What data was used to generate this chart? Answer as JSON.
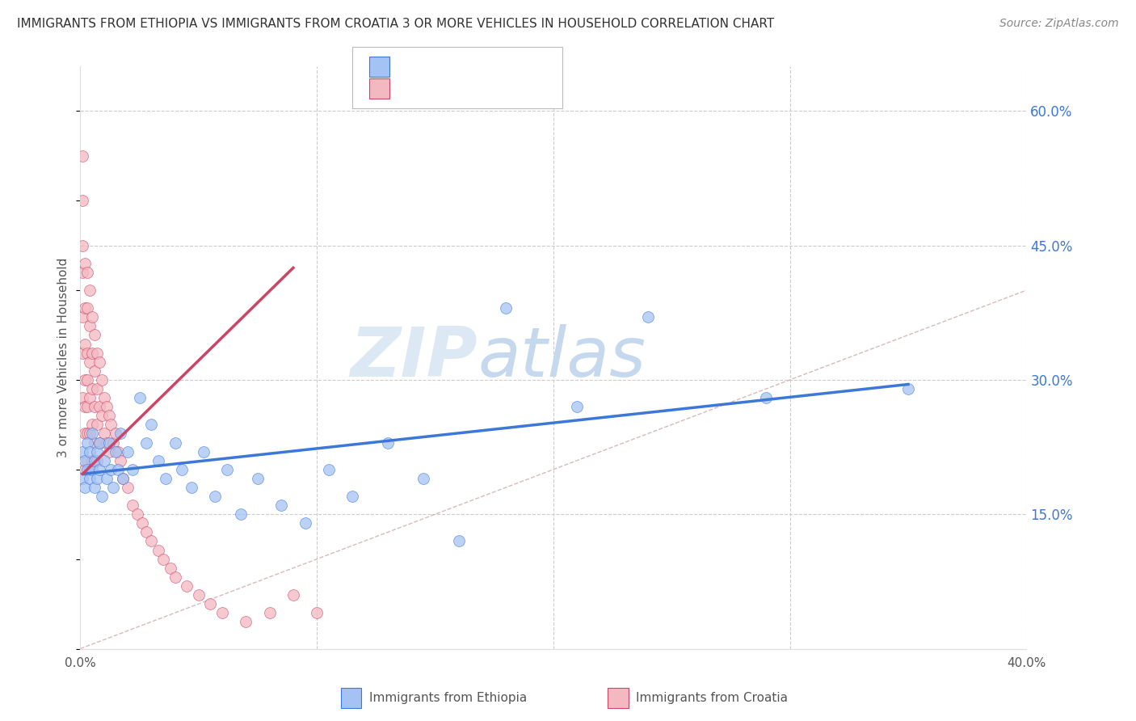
{
  "title": "IMMIGRANTS FROM ETHIOPIA VS IMMIGRANTS FROM CROATIA 3 OR MORE VEHICLES IN HOUSEHOLD CORRELATION CHART",
  "source": "Source: ZipAtlas.com",
  "ylabel": "3 or more Vehicles in Household",
  "xlim": [
    0.0,
    0.4
  ],
  "ylim": [
    0.0,
    0.65
  ],
  "yticks_right": [
    0.15,
    0.3,
    0.45,
    0.6
  ],
  "scatter_color1": "#a4c2f4",
  "scatter_color2": "#f4b8c1",
  "line_color1": "#3c78d8",
  "line_color2": "#cc4466",
  "diag_color": "#ccaaaa",
  "watermark_zip": "ZIP",
  "watermark_atlas": "atlas",
  "watermark_color_zip": "#dce9f5",
  "watermark_color_atlas": "#c5d8ed",
  "background_color": "#ffffff",
  "grid_color": "#cccccc",
  "title_color": "#333333",
  "axis_label_color": "#555555",
  "tick_color_right": "#3c78d8",
  "legend_r_color": "#3c78d8",
  "legend_n_color": "#3c78d8",
  "legend_r2_color": "#cc4466",
  "legend_n2_color": "#cc4466",
  "ethiopia_x": [
    0.001,
    0.001,
    0.002,
    0.002,
    0.003,
    0.003,
    0.004,
    0.004,
    0.005,
    0.005,
    0.006,
    0.006,
    0.007,
    0.007,
    0.008,
    0.008,
    0.009,
    0.01,
    0.011,
    0.012,
    0.013,
    0.014,
    0.015,
    0.016,
    0.017,
    0.018,
    0.02,
    0.022,
    0.025,
    0.028,
    0.03,
    0.033,
    0.036,
    0.04,
    0.043,
    0.047,
    0.052,
    0.057,
    0.062,
    0.068,
    0.075,
    0.085,
    0.095,
    0.105,
    0.115,
    0.13,
    0.145,
    0.16,
    0.18,
    0.21,
    0.24,
    0.29,
    0.35
  ],
  "ethiopia_y": [
    0.22,
    0.19,
    0.21,
    0.18,
    0.2,
    0.23,
    0.19,
    0.22,
    0.2,
    0.24,
    0.18,
    0.21,
    0.19,
    0.22,
    0.2,
    0.23,
    0.17,
    0.21,
    0.19,
    0.23,
    0.2,
    0.18,
    0.22,
    0.2,
    0.24,
    0.19,
    0.22,
    0.2,
    0.28,
    0.23,
    0.25,
    0.21,
    0.19,
    0.23,
    0.2,
    0.18,
    0.22,
    0.17,
    0.2,
    0.15,
    0.19,
    0.16,
    0.14,
    0.2,
    0.17,
    0.23,
    0.19,
    0.12,
    0.38,
    0.27,
    0.37,
    0.28,
    0.29
  ],
  "croatia_x": [
    0.001,
    0.001,
    0.001,
    0.001,
    0.001,
    0.001,
    0.001,
    0.002,
    0.002,
    0.002,
    0.002,
    0.002,
    0.002,
    0.002,
    0.003,
    0.003,
    0.003,
    0.003,
    0.003,
    0.003,
    0.003,
    0.004,
    0.004,
    0.004,
    0.004,
    0.004,
    0.004,
    0.005,
    0.005,
    0.005,
    0.005,
    0.005,
    0.006,
    0.006,
    0.006,
    0.006,
    0.007,
    0.007,
    0.007,
    0.007,
    0.008,
    0.008,
    0.008,
    0.009,
    0.009,
    0.01,
    0.01,
    0.011,
    0.011,
    0.012,
    0.012,
    0.013,
    0.014,
    0.015,
    0.016,
    0.017,
    0.018,
    0.02,
    0.022,
    0.024,
    0.026,
    0.028,
    0.03,
    0.033,
    0.035,
    0.038,
    0.04,
    0.045,
    0.05,
    0.055,
    0.06,
    0.07,
    0.08,
    0.09,
    0.1
  ],
  "croatia_y": [
    0.55,
    0.5,
    0.45,
    0.42,
    0.37,
    0.33,
    0.28,
    0.43,
    0.38,
    0.34,
    0.3,
    0.27,
    0.24,
    0.2,
    0.42,
    0.38,
    0.33,
    0.3,
    0.27,
    0.24,
    0.21,
    0.4,
    0.36,
    0.32,
    0.28,
    0.24,
    0.2,
    0.37,
    0.33,
    0.29,
    0.25,
    0.21,
    0.35,
    0.31,
    0.27,
    0.23,
    0.33,
    0.29,
    0.25,
    0.21,
    0.32,
    0.27,
    0.23,
    0.3,
    0.26,
    0.28,
    0.24,
    0.27,
    0.23,
    0.26,
    0.22,
    0.25,
    0.23,
    0.24,
    0.22,
    0.21,
    0.19,
    0.18,
    0.16,
    0.15,
    0.14,
    0.13,
    0.12,
    0.11,
    0.1,
    0.09,
    0.08,
    0.07,
    0.06,
    0.05,
    0.04,
    0.03,
    0.04,
    0.06,
    0.04
  ],
  "eth_line_x": [
    0.001,
    0.35
  ],
  "eth_line_y": [
    0.195,
    0.295
  ],
  "cro_line_x": [
    0.001,
    0.09
  ],
  "cro_line_y": [
    0.195,
    0.425
  ]
}
